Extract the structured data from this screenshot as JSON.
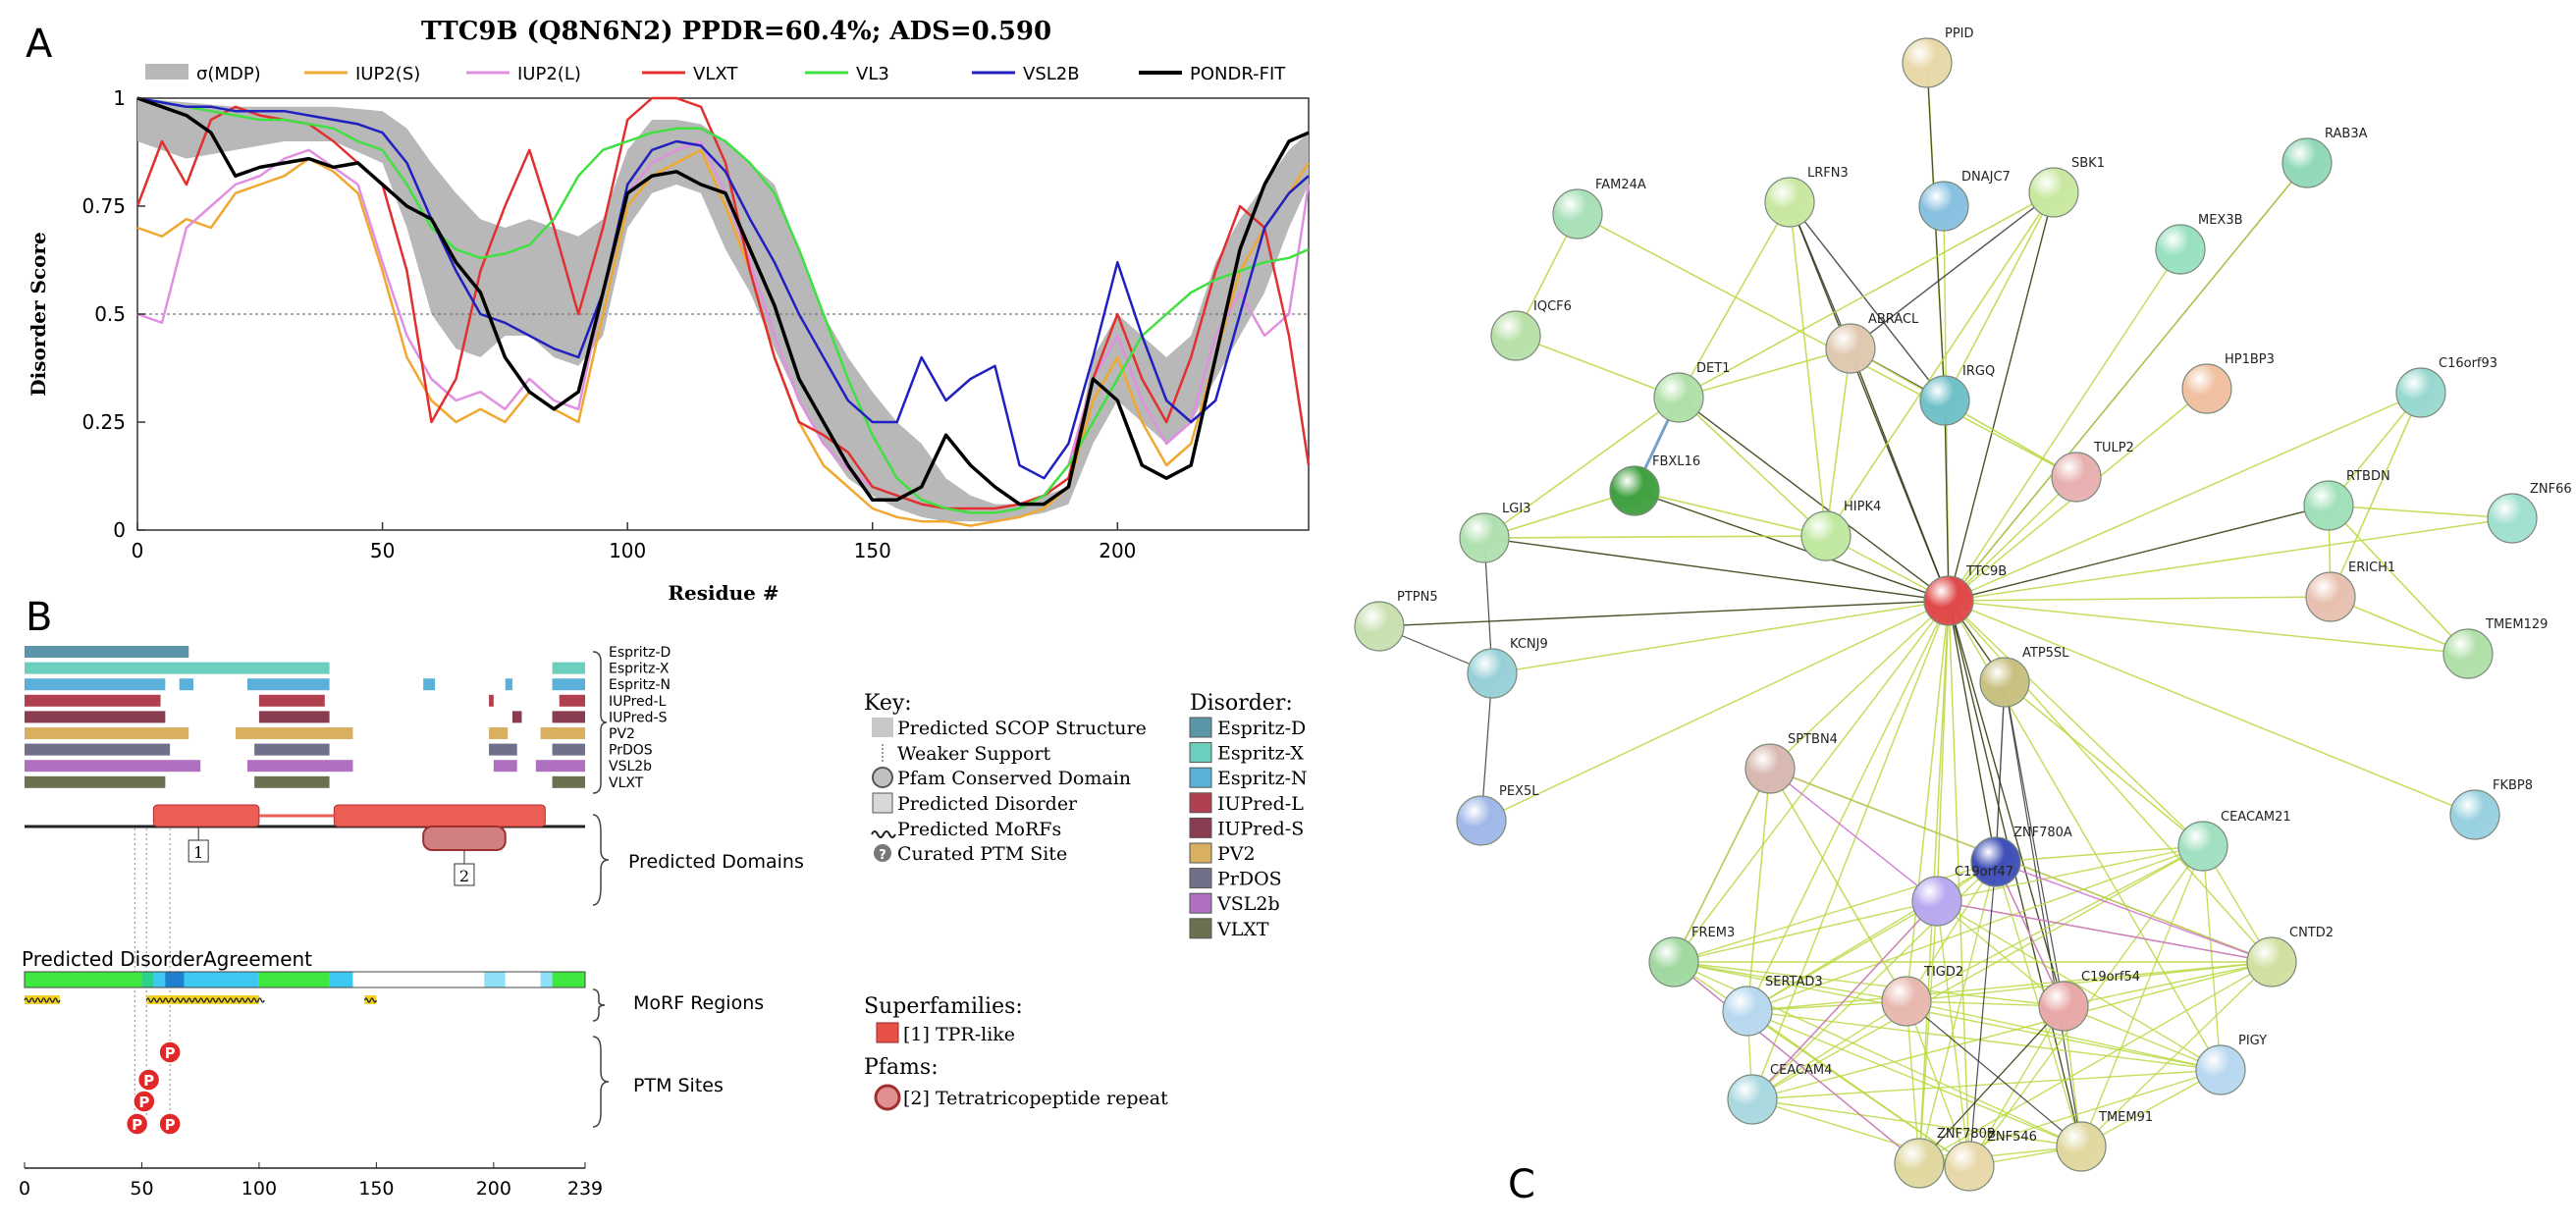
{
  "panel_labels": {
    "a": "A",
    "b": "B",
    "c": "C"
  },
  "chart_data": [
    {
      "type": "line",
      "title": "TTC9B (Q8N6N2) PPDR=60.4%; ADS=0.590",
      "xlabel": "Residue #",
      "ylabel": "Disorder Score",
      "xlim": [
        0,
        239
      ],
      "ylim": [
        0,
        1
      ],
      "xticks": [
        "0",
        "50",
        "100",
        "150",
        "200"
      ],
      "yticks": [
        "0",
        "0.25",
        "0.5",
        "0.75",
        "1"
      ],
      "threshold": 0.5,
      "band": {
        "name": "σ(MDP)",
        "color": "#b8b8b8",
        "x": [
          0,
          10,
          20,
          30,
          40,
          50,
          55,
          60,
          65,
          70,
          75,
          80,
          85,
          90,
          95,
          100,
          105,
          110,
          115,
          120,
          125,
          130,
          135,
          140,
          145,
          150,
          155,
          160,
          165,
          170,
          175,
          180,
          185,
          190,
          195,
          200,
          205,
          210,
          215,
          220,
          225,
          230,
          235,
          239
        ],
        "low": [
          0.9,
          0.86,
          0.88,
          0.9,
          0.9,
          0.85,
          0.7,
          0.5,
          0.42,
          0.4,
          0.45,
          0.45,
          0.4,
          0.38,
          0.45,
          0.7,
          0.78,
          0.8,
          0.78,
          0.65,
          0.55,
          0.42,
          0.3,
          0.2,
          0.12,
          0.08,
          0.05,
          0.03,
          0.02,
          0.02,
          0.02,
          0.03,
          0.04,
          0.06,
          0.2,
          0.3,
          0.25,
          0.2,
          0.25,
          0.35,
          0.45,
          0.55,
          0.7,
          0.8
        ],
        "high": [
          1.0,
          0.99,
          0.98,
          0.98,
          0.98,
          0.97,
          0.93,
          0.85,
          0.78,
          0.72,
          0.7,
          0.72,
          0.7,
          0.68,
          0.72,
          0.88,
          0.95,
          0.95,
          0.94,
          0.9,
          0.85,
          0.8,
          0.65,
          0.5,
          0.4,
          0.32,
          0.25,
          0.2,
          0.12,
          0.08,
          0.06,
          0.06,
          0.08,
          0.1,
          0.4,
          0.5,
          0.45,
          0.4,
          0.45,
          0.62,
          0.72,
          0.8,
          0.88,
          0.92
        ]
      },
      "x": [
        0,
        5,
        10,
        15,
        20,
        25,
        30,
        35,
        40,
        45,
        50,
        55,
        60,
        65,
        70,
        75,
        80,
        85,
        90,
        95,
        100,
        105,
        110,
        115,
        120,
        125,
        130,
        135,
        140,
        145,
        150,
        155,
        160,
        165,
        170,
        175,
        180,
        185,
        190,
        195,
        200,
        205,
        210,
        215,
        220,
        225,
        230,
        235,
        239
      ],
      "series": [
        {
          "name": "IUP2(S)",
          "color": "#f0a830",
          "values": [
            0.7,
            0.68,
            0.72,
            0.7,
            0.78,
            0.8,
            0.82,
            0.86,
            0.83,
            0.78,
            0.6,
            0.4,
            0.3,
            0.25,
            0.28,
            0.25,
            0.32,
            0.28,
            0.25,
            0.5,
            0.75,
            0.82,
            0.85,
            0.88,
            0.75,
            0.6,
            0.4,
            0.25,
            0.15,
            0.1,
            0.05,
            0.03,
            0.02,
            0.02,
            0.01,
            0.02,
            0.03,
            0.05,
            0.1,
            0.3,
            0.4,
            0.25,
            0.15,
            0.2,
            0.4,
            0.6,
            0.7,
            0.78,
            0.85
          ]
        },
        {
          "name": "IUP2(L)",
          "color": "#e090e0",
          "values": [
            0.5,
            0.48,
            0.7,
            0.75,
            0.8,
            0.82,
            0.86,
            0.88,
            0.84,
            0.8,
            0.62,
            0.45,
            0.35,
            0.3,
            0.32,
            0.28,
            0.35,
            0.3,
            0.28,
            0.55,
            0.78,
            0.85,
            0.88,
            0.9,
            0.78,
            0.62,
            0.45,
            0.3,
            0.2,
            0.14,
            0.1,
            0.08,
            0.06,
            0.05,
            0.04,
            0.04,
            0.05,
            0.08,
            0.15,
            0.35,
            0.45,
            0.3,
            0.2,
            0.25,
            0.45,
            0.55,
            0.45,
            0.5,
            0.8
          ]
        },
        {
          "name": "VLXT",
          "color": "#e03030",
          "values": [
            0.75,
            0.9,
            0.8,
            0.95,
            0.98,
            0.96,
            0.95,
            0.94,
            0.9,
            0.85,
            0.8,
            0.6,
            0.25,
            0.35,
            0.6,
            0.75,
            0.88,
            0.7,
            0.5,
            0.7,
            0.95,
            1.0,
            1.0,
            0.98,
            0.85,
            0.6,
            0.4,
            0.25,
            0.22,
            0.18,
            0.1,
            0.08,
            0.06,
            0.05,
            0.05,
            0.05,
            0.06,
            0.08,
            0.12,
            0.35,
            0.5,
            0.35,
            0.25,
            0.4,
            0.6,
            0.75,
            0.7,
            0.45,
            0.15
          ]
        },
        {
          "name": "VL3",
          "color": "#40e040",
          "values": [
            1.0,
            0.99,
            0.98,
            0.97,
            0.96,
            0.95,
            0.95,
            0.94,
            0.93,
            0.9,
            0.88,
            0.8,
            0.7,
            0.65,
            0.63,
            0.64,
            0.66,
            0.72,
            0.82,
            0.88,
            0.9,
            0.92,
            0.93,
            0.93,
            0.9,
            0.85,
            0.78,
            0.65,
            0.5,
            0.35,
            0.22,
            0.12,
            0.07,
            0.05,
            0.04,
            0.04,
            0.05,
            0.08,
            0.15,
            0.25,
            0.35,
            0.45,
            0.5,
            0.55,
            0.58,
            0.6,
            0.62,
            0.63,
            0.65
          ]
        },
        {
          "name": "VSL2B",
          "color": "#2020c0",
          "values": [
            1.0,
            0.99,
            0.98,
            0.98,
            0.97,
            0.97,
            0.97,
            0.96,
            0.95,
            0.94,
            0.92,
            0.85,
            0.72,
            0.6,
            0.5,
            0.48,
            0.45,
            0.42,
            0.4,
            0.55,
            0.8,
            0.88,
            0.9,
            0.89,
            0.83,
            0.72,
            0.62,
            0.5,
            0.4,
            0.3,
            0.25,
            0.25,
            0.4,
            0.3,
            0.35,
            0.38,
            0.15,
            0.12,
            0.2,
            0.4,
            0.62,
            0.45,
            0.3,
            0.25,
            0.3,
            0.5,
            0.7,
            0.78,
            0.82
          ]
        },
        {
          "name": "PONDR-FIT",
          "color": "#000000",
          "values": [
            1.0,
            0.98,
            0.96,
            0.92,
            0.82,
            0.84,
            0.85,
            0.86,
            0.84,
            0.85,
            0.8,
            0.75,
            0.72,
            0.62,
            0.55,
            0.4,
            0.32,
            0.28,
            0.32,
            0.55,
            0.78,
            0.82,
            0.83,
            0.8,
            0.78,
            0.65,
            0.52,
            0.35,
            0.25,
            0.15,
            0.07,
            0.07,
            0.1,
            0.22,
            0.15,
            0.1,
            0.06,
            0.06,
            0.1,
            0.35,
            0.3,
            0.15,
            0.12,
            0.15,
            0.4,
            0.65,
            0.8,
            0.9,
            0.92
          ]
        }
      ]
    },
    {
      "type": "table",
      "xlim": [
        0,
        239
      ],
      "xticks": [
        "0",
        "50",
        "100",
        "150",
        "200",
        "239"
      ],
      "predictors": [
        {
          "name": "Espritz-D",
          "color": "#5b96a8",
          "segments": [
            [
              0,
              70
            ]
          ]
        },
        {
          "name": "Espritz-X",
          "color": "#6ccfbd",
          "segments": [
            [
              0,
              130
            ],
            [
              225,
              239
            ]
          ]
        },
        {
          "name": "Espritz-N",
          "color": "#5ab0d8",
          "segments": [
            [
              0,
              60
            ],
            [
              66,
              72
            ],
            [
              95,
              130
            ],
            [
              170,
              175
            ],
            [
              205,
              208
            ],
            [
              225,
              239
            ]
          ]
        },
        {
          "name": "IUPred-L",
          "color": "#b04050",
          "segments": [
            [
              0,
              58
            ],
            [
              100,
              128
            ],
            [
              198,
              200
            ],
            [
              228,
              239
            ]
          ]
        },
        {
          "name": "IUPred-S",
          "color": "#8a3c50",
          "segments": [
            [
              0,
              60
            ],
            [
              100,
              130
            ],
            [
              208,
              212
            ],
            [
              225,
              239
            ]
          ]
        },
        {
          "name": "PV2",
          "color": "#d8b060",
          "segments": [
            [
              0,
              70
            ],
            [
              90,
              140
            ],
            [
              198,
              206
            ],
            [
              220,
              239
            ]
          ]
        },
        {
          "name": "PrDOS",
          "color": "#70708a",
          "segments": [
            [
              0,
              62
            ],
            [
              98,
              130
            ],
            [
              198,
              210
            ],
            [
              225,
              239
            ]
          ]
        },
        {
          "name": "VSL2b",
          "color": "#b070c0",
          "segments": [
            [
              0,
              75
            ],
            [
              95,
              140
            ],
            [
              200,
              210
            ],
            [
              218,
              239
            ]
          ]
        },
        {
          "name": "VLXT",
          "color": "#6c7050",
          "segments": [
            [
              0,
              60
            ],
            [
              98,
              130
            ],
            [
              225,
              239
            ]
          ]
        }
      ],
      "domain_label": "Predicted Domains",
      "domains": [
        {
          "label": "1",
          "start": 55,
          "end": 100
        },
        {
          "label": "2",
          "start": 132,
          "end": 222
        }
      ],
      "pfams": [
        {
          "label": "2",
          "start": 170,
          "end": 205
        }
      ],
      "agreement_label": "Predicted DisorderAgreement",
      "morf_label": "MoRF Regions",
      "morf_regions": [
        [
          0,
          15
        ],
        [
          52,
          100
        ],
        [
          145,
          150
        ]
      ],
      "ptm_label": "PTM Sites",
      "ptm_sites": [
        {
          "label": "P",
          "residue": 62
        },
        {
          "label": "P",
          "residue": 53
        },
        {
          "label": "P",
          "residue": 51
        },
        {
          "label": "P",
          "residue": 48
        },
        {
          "label": "P",
          "residue": 62
        }
      ],
      "key": {
        "title": "Key:",
        "items": [
          "Predicted SCOP Structure",
          "Weaker Support",
          "Pfam Conserved Domain",
          "Predicted Disorder",
          "Predicted MoRFs",
          "Curated PTM Site"
        ],
        "disorder_title": "Disorder:",
        "superfamilies_title": "Superfamilies:",
        "superfamily": "[1] TPR-like",
        "pfams_title": "Pfams:",
        "pfam": "[2] Tetratricopeptide repeat"
      }
    }
  ],
  "network": {
    "nodes": [
      {
        "label": "PPID",
        "color": "#e8d8a8"
      },
      {
        "label": "RAB3A",
        "color": "#90d8b8"
      },
      {
        "label": "LRFN3",
        "color": "#c8e8a0"
      },
      {
        "label": "DNAJC7",
        "color": "#88c0e0"
      },
      {
        "label": "SBK1",
        "color": "#c8e8a0"
      },
      {
        "label": "FAM24A",
        "color": "#a8e0b8"
      },
      {
        "label": "MEX3B",
        "color": "#98e0c0"
      },
      {
        "label": "IQCF6",
        "color": "#b8e0a8"
      },
      {
        "label": "ABRACL",
        "color": "#e0c8b0"
      },
      {
        "label": "HP1BP3",
        "color": "#f0c0a0"
      },
      {
        "label": "C16orf93",
        "color": "#98d8d0"
      },
      {
        "label": "DET1",
        "color": "#b0e0a8"
      },
      {
        "label": "IRGQ",
        "color": "#70c0c8"
      },
      {
        "label": "TULP2",
        "color": "#e8b0b0"
      },
      {
        "label": "FBXL16",
        "color": "#40a040"
      },
      {
        "label": "LGI3",
        "color": "#b0e0b0"
      },
      {
        "label": "HIPK4",
        "color": "#c0e8a0"
      },
      {
        "label": "RTBDN",
        "color": "#a0e0b8"
      },
      {
        "label": "ZNF66",
        "color": "#a0e0d0"
      },
      {
        "label": "TTC9B",
        "color": "#e04848"
      },
      {
        "label": "ERICH1",
        "color": "#e8c0b0"
      },
      {
        "label": "PTPN5",
        "color": "#c8e0b0"
      },
      {
        "label": "KCNJ9",
        "color": "#98d0d8"
      },
      {
        "label": "TMEM129",
        "color": "#b0e0a8"
      },
      {
        "label": "ATP5SL",
        "color": "#c8c080"
      },
      {
        "label": "SPTBN4",
        "color": "#d8b8b0"
      },
      {
        "label": "PEX5L",
        "color": "#a0b8e8"
      },
      {
        "label": "FKBP8",
        "color": "#98d0e0"
      },
      {
        "label": "ZNF780A",
        "color": "#4050b8"
      },
      {
        "label": "CEACAM21",
        "color": "#a0e0c0"
      },
      {
        "label": "C19orf47",
        "color": "#b8a8f0"
      },
      {
        "label": "FREM3",
        "color": "#a0d8a0"
      },
      {
        "label": "CNTD2",
        "color": "#d0e0a0"
      },
      {
        "label": "SERTAD3",
        "color": "#b8d8f0"
      },
      {
        "label": "TIGD2",
        "color": "#e8b8b0"
      },
      {
        "label": "C19orf54",
        "color": "#e8a8a8"
      },
      {
        "label": "PIGY",
        "color": "#b8d8f0"
      },
      {
        "label": "CEACAM4",
        "color": "#a8d8e0"
      },
      {
        "label": "TMEM91",
        "color": "#e0d8a0"
      },
      {
        "label": "ZNF780B",
        "color": "#e0d8a0"
      },
      {
        "label": "ZNF546",
        "color": "#e8d8a8"
      }
    ]
  }
}
